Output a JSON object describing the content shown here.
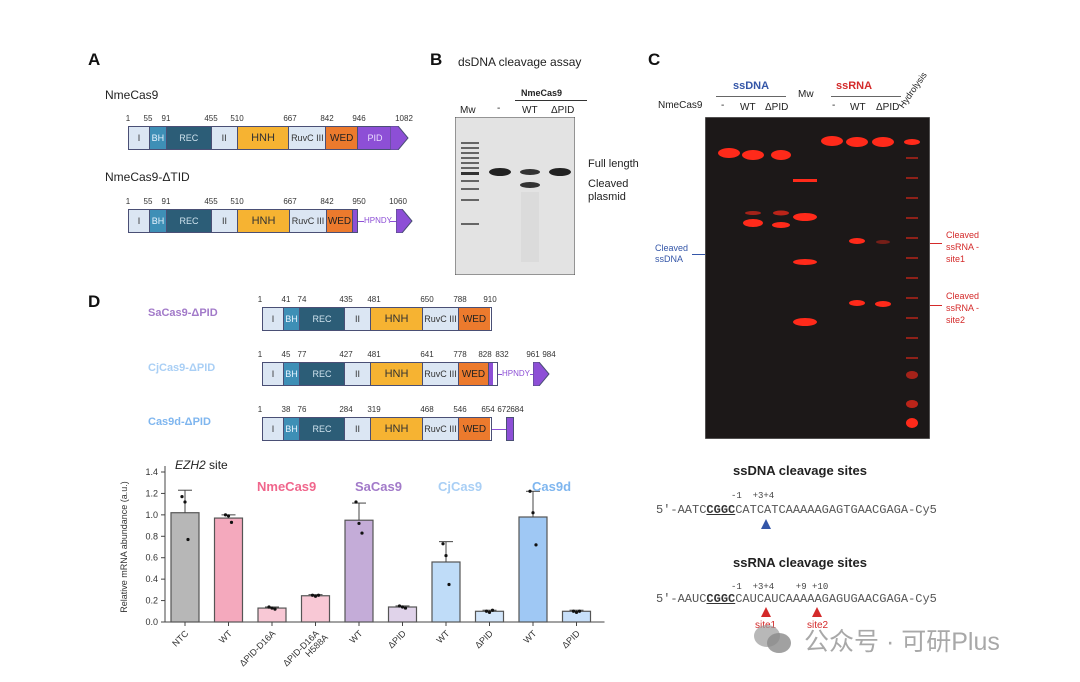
{
  "panels": {
    "A": {
      "letter": "A",
      "constructs": [
        {
          "name": "NmeCas9",
          "positions": [
            "1",
            "55",
            "91",
            "455",
            "510",
            "667",
            "842",
            "946",
            "1082"
          ],
          "domains": [
            "I",
            "BH",
            "REC",
            "II",
            "HNH",
            "RuvC III",
            "WED",
            "PID"
          ]
        },
        {
          "name": "NmeCas9-ΔTID",
          "positions": [
            "1",
            "55",
            "91",
            "455",
            "510",
            "667",
            "842",
            "950",
            "1060"
          ],
          "domains": [
            "I",
            "BH",
            "REC",
            "II",
            "HNH",
            "RuvC III",
            "WED"
          ],
          "linker": "HPNDY"
        }
      ]
    },
    "B": {
      "letter": "B",
      "title": "dsDNA cleavage assay",
      "group_label": "NmeCas9",
      "lanes": [
        "Mw",
        "-",
        "WT",
        "ΔPID"
      ],
      "band_labels": [
        "Full length",
        "Cleaved plasmid"
      ]
    },
    "C": {
      "letter": "C",
      "row_label": "NmeCas9",
      "group_ssdna": "ssDNA",
      "group_ssrna": "ssRNA",
      "mw": "Mw",
      "hydrolysis": "Hydrolysis",
      "lanes_ssdna": [
        "-",
        "WT",
        "ΔPID"
      ],
      "lanes_ssrna": [
        "-",
        "WT",
        "ΔPID"
      ],
      "left_label": "Cleaved ssDNA",
      "right_label_1": "Cleaved ssRNA -site1",
      "right_label_2": "Cleaved ssRNA - site2",
      "ssdna_sites": {
        "title": "ssDNA cleavage sites",
        "numbers": "-1  +3+4",
        "seq_prefix": "5′-AATC",
        "seq_pam": "CGGC",
        "seq_suffix": "CATCATCAAAAAGAGTGAACGAGA-Cy5"
      },
      "ssrna_sites": {
        "title": "ssRNA cleavage sites",
        "numbers": "-1  +3+4    +9 +10",
        "seq_prefix": "5′-AAUC",
        "seq_pam": "CGGC",
        "seq_suffix": "CAUCAUCAAAAAGAGUGAACGAGA-Cy5",
        "site1": "site1",
        "site2": "site2"
      }
    },
    "D": {
      "letter": "D",
      "constructs": [
        {
          "name": "SaCas9-ΔPID",
          "color": "#a27ac9",
          "positions": [
            "1",
            "41",
            "74",
            "435",
            "481",
            "650",
            "788",
            "910"
          ],
          "domains": [
            "I",
            "BH",
            "REC",
            "II",
            "HNH",
            "RuvC III",
            "WED"
          ]
        },
        {
          "name": "CjCas9-ΔPID",
          "color": "#a9cff5",
          "positions": [
            "1",
            "45",
            "77",
            "427",
            "481",
            "641",
            "778",
            "828",
            "832",
            "961",
            "984"
          ],
          "domains": [
            "I",
            "BH",
            "REC",
            "II",
            "HNH",
            "RuvC III",
            "WED"
          ],
          "linker": "HPNDY"
        },
        {
          "name": "Cas9d-ΔPID",
          "color": "#7fb6ef",
          "positions": [
            "1",
            "38",
            "76",
            "284",
            "319",
            "468",
            "546",
            "654",
            "672",
            "684"
          ],
          "domains": [
            "I",
            "BH",
            "REC",
            "II",
            "HNH",
            "RuvC III",
            "WED"
          ]
        }
      ]
    }
  },
  "chart_data": {
    "type": "bar",
    "title": "EZH2 site",
    "xlabel": "",
    "ylabel": "Relative mRNA abundance (a.u.)",
    "ylim": [
      0,
      1.4
    ],
    "yticks": [
      "0.0",
      "0.2",
      "0.4",
      "0.6",
      "0.8",
      "1.0",
      "1.2",
      "1.4"
    ],
    "categories": [
      "NTC",
      "WT",
      "ΔPID-D16A",
      "ΔPID-D16A H588A",
      "WT",
      "ΔPID",
      "WT",
      "ΔPID",
      "WT",
      "ΔPID"
    ],
    "groups": [
      {
        "name": "NmeCas9",
        "color": "#f0668c",
        "indices": [
          1,
          2,
          3
        ]
      },
      {
        "name": "SaCas9",
        "color": "#a27ac9",
        "indices": [
          4,
          5
        ]
      },
      {
        "name": "CjCas9",
        "color": "#a9cff5",
        "indices": [
          6,
          7
        ]
      },
      {
        "name": "Cas9d",
        "color": "#7fb6ef",
        "indices": [
          8,
          9
        ]
      }
    ],
    "values": [
      1.02,
      0.97,
      0.13,
      0.245,
      0.95,
      0.14,
      0.56,
      0.1,
      0.98,
      0.1
    ],
    "errors": [
      0.21,
      0.03,
      0.01,
      0.01,
      0.16,
      0.01,
      0.19,
      0.01,
      0.24,
      0.01
    ],
    "points": [
      [
        1.17,
        1.12,
        0.77
      ],
      [
        1.0,
        0.99,
        0.93
      ],
      [
        0.14,
        0.13,
        0.12
      ],
      [
        0.25,
        0.24,
        0.25
      ],
      [
        1.12,
        0.92,
        0.83
      ],
      [
        0.15,
        0.14,
        0.13
      ],
      [
        0.73,
        0.62,
        0.35
      ],
      [
        0.1,
        0.09,
        0.11
      ],
      [
        1.22,
        1.02,
        0.72
      ],
      [
        0.1,
        0.09,
        0.1
      ]
    ],
    "bar_colors": [
      "#b7b7b7",
      "#f4a9bd",
      "#f8c8d5",
      "#f8c8d5",
      "#c4acd8",
      "#e0d3ea",
      "#bfdcf8",
      "#d3e6fa",
      "#9fc8f4",
      "#c8e0fa"
    ],
    "grid": false
  },
  "watermark": "公众号 · 可研Plus"
}
